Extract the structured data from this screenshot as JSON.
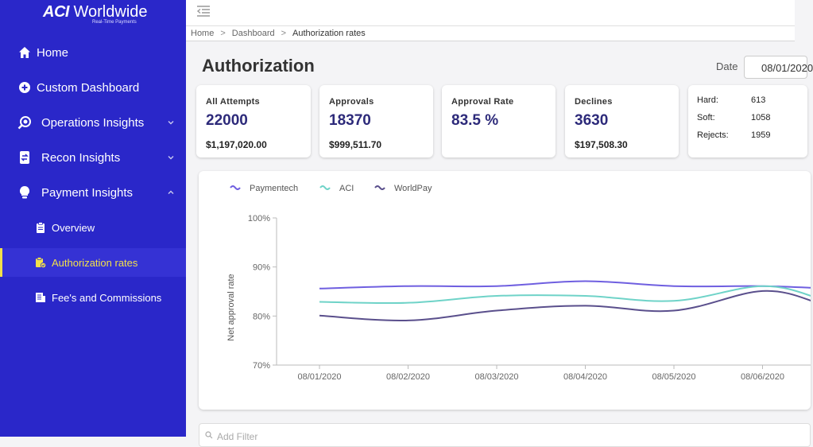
{
  "brand": {
    "name_bold": "ACI",
    "name_rest": " Worldwide",
    "tagline": "Real-Time Payments"
  },
  "sidebar": {
    "items": [
      {
        "label": "Home",
        "icon": "home-icon"
      },
      {
        "label": "Custom Dashboard",
        "icon": "plus-circle-icon"
      },
      {
        "label": "Operations Insights",
        "icon": "eye-search-icon"
      },
      {
        "label": "Recon Insights",
        "icon": "swap-doc-icon"
      },
      {
        "label": "Payment Insights",
        "icon": "lightbulb-icon"
      }
    ],
    "sub_items": [
      {
        "label": "Overview",
        "icon": "clipboard-icon"
      },
      {
        "label": "Authorization rates",
        "icon": "clipboard-check-icon",
        "active": true
      },
      {
        "label": "Fee's and Commissions",
        "icon": "receipt-icon"
      }
    ],
    "accent": "#2a27c9",
    "active_color": "#f2e04a"
  },
  "breadcrumb": {
    "items": [
      "Home",
      "Dashboard",
      "Authorization rates"
    ],
    "separator": ">"
  },
  "page": {
    "title": "Authorization",
    "date_label": "Date",
    "date_value": "08/01/2020"
  },
  "cards": [
    {
      "title": "All Attempts",
      "value": "22000",
      "amount": "$1,197,020.00"
    },
    {
      "title": "Approvals",
      "value": "18370",
      "amount": "$999,511.70"
    },
    {
      "title": "Approval Rate",
      "value": "83.5 %",
      "amount": ""
    },
    {
      "title": "Declines",
      "value": "3630",
      "amount": "$197,508.30"
    }
  ],
  "declines_breakdown": [
    {
      "label": "Hard:",
      "value": "613"
    },
    {
      "label": "Soft:",
      "value": "1058"
    },
    {
      "label": "Rejects:",
      "value": "1959"
    }
  ],
  "chart_data": {
    "type": "line",
    "ylabel": "Net approval rate",
    "xlabel": "",
    "ylim": [
      70,
      100
    ],
    "yticks": [
      "70%",
      "80%",
      "90%",
      "100%"
    ],
    "x": [
      "08/01/2020",
      "08/02/2020",
      "08/03/2020",
      "08/04/2020",
      "08/05/2020",
      "08/06/2020"
    ],
    "series": [
      {
        "name": "Paymentech",
        "color": "#6f5fe0",
        "values": [
          85.6,
          86.1,
          86.1,
          87.1,
          86.1,
          86.1
        ]
      },
      {
        "name": "ACI",
        "color": "#6fd3c8",
        "values": [
          82.9,
          82.7,
          84.1,
          84.1,
          83.1,
          86.1
        ]
      },
      {
        "name": "WorldPay",
        "color": "#5a4f8c",
        "values": [
          80.1,
          79.1,
          81.1,
          82.1,
          81.1,
          85.1
        ]
      }
    ],
    "legend": "top-left",
    "grid": false
  },
  "filter": {
    "placeholder": "Add Filter"
  }
}
